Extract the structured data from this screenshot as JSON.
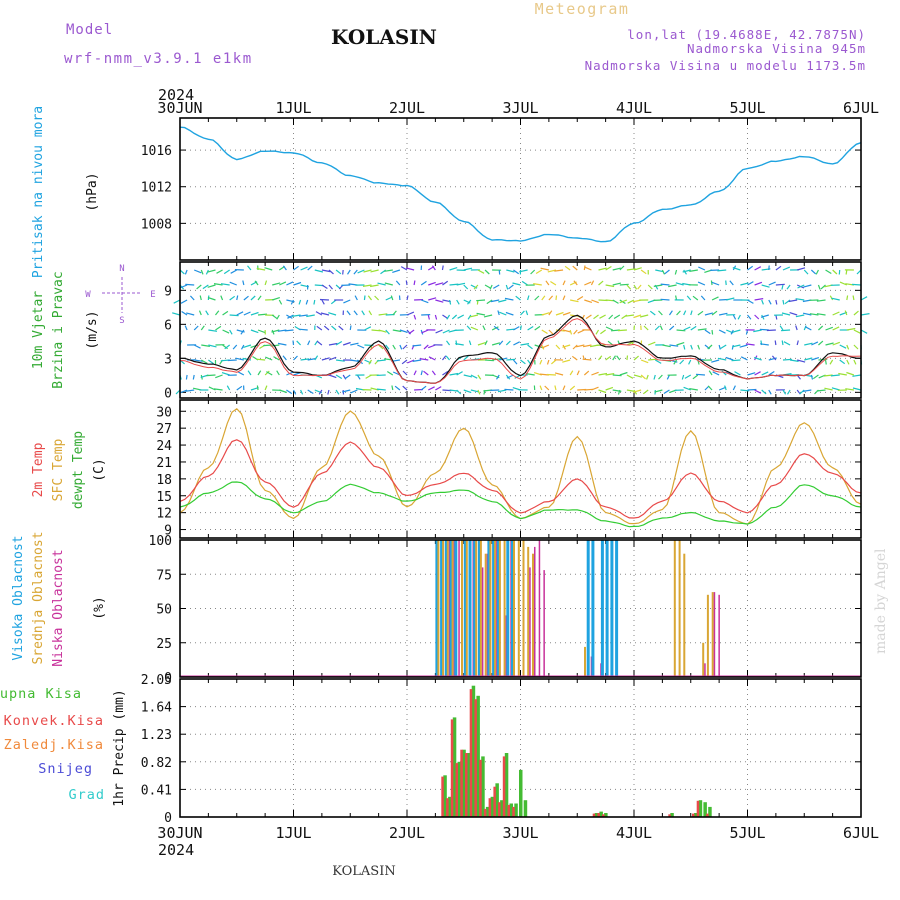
{
  "header": {
    "model_label": "Model",
    "model_name": "wrf-nmm_v3.9.1 e1km",
    "station": "KOLASIN",
    "meteogram": "Meteogram",
    "lonlat": "lon,lat (19.4688E, 42.7875N)",
    "altitude": "Nadmorska Visina 945m",
    "model_altitude": "Nadmorska Visina u modelu 1173.5m",
    "year": "2024",
    "footer_station": "KOLASIN",
    "credit": "made by Angel"
  },
  "colors": {
    "pressure": "#1fa3e0",
    "temp2m": "#e84a4a",
    "sfc_temp": "#d9a634",
    "dewpt": "#33cc33",
    "high_cloud": "#1fa3e0",
    "mid_cloud": "#d9a634",
    "low_cloud": "#c8329b",
    "total_precip": "#44bb33",
    "convective": "#e84a4a",
    "frozen": "#f08a3c",
    "snow": "#4c4cd6",
    "hail": "#33cccc"
  },
  "chart_data": [
    {
      "type": "line",
      "panel": "pressure",
      "ylabel": [
        "Pritisak na nivou mora",
        "(hPa)"
      ],
      "x_ticks": [
        "30JUN",
        "1JUL",
        "2JUL",
        "3JUL",
        "4JUL",
        "5JUL",
        "6JUL"
      ],
      "yticks": [
        1008,
        1012,
        1016
      ],
      "ylim": [
        1004,
        1019.5
      ],
      "x_hours": [
        0,
        6,
        12,
        18,
        24,
        30,
        36,
        42,
        48,
        54,
        60,
        66,
        72,
        78,
        84,
        90,
        96,
        102,
        108,
        114,
        120,
        126,
        132,
        138,
        144
      ],
      "series": [
        {
          "values": [
            1018.5,
            1017.2,
            1015.0,
            1015.9,
            1015.7,
            1014.6,
            1013.2,
            1012.4,
            1012.1,
            1010.3,
            1008.2,
            1006.2,
            1006.1,
            1006.8,
            1006.4,
            1006.0,
            1008.0,
            1009.5,
            1010.0,
            1011.5,
            1014.0,
            1014.8,
            1015.3,
            1014.5,
            1016.8
          ]
        }
      ]
    },
    {
      "type": "line",
      "panel": "wind",
      "ylabel": [
        "10m Vjetar",
        "Brzina i Pravac",
        "(m/s)"
      ],
      "compass": {
        "north": "N",
        "south": "S",
        "west": "W",
        "east": "E"
      },
      "yticks": [
        0,
        3,
        6,
        9
      ],
      "ylim": [
        -0.5,
        11.5
      ],
      "x_hours": [
        0,
        6,
        12,
        18,
        24,
        30,
        36,
        42,
        48,
        54,
        60,
        66,
        72,
        78,
        84,
        90,
        96,
        102,
        108,
        114,
        120,
        126,
        132,
        138,
        144
      ],
      "series": [
        {
          "values": [
            3.0,
            2.5,
            2.0,
            4.8,
            1.8,
            1.5,
            2.2,
            4.5,
            1.0,
            0.8,
            3.2,
            3.5,
            1.5,
            5.0,
            6.8,
            4.0,
            4.5,
            3.0,
            3.2,
            2.0,
            1.2,
            1.5,
            1.5,
            3.5,
            3.0
          ]
        },
        {
          "values": [
            2.8,
            2.2,
            1.8,
            4.5,
            1.5,
            1.5,
            2.0,
            4.2,
            1.0,
            0.8,
            2.8,
            3.0,
            1.2,
            4.8,
            6.5,
            4.2,
            4.2,
            2.8,
            3.0,
            1.8,
            1.2,
            1.5,
            1.5,
            3.2,
            3.2
          ]
        }
      ]
    },
    {
      "type": "line",
      "panel": "temperature",
      "ylabel": [
        "2m Temp",
        "SFC Temp",
        "dewpt Temp",
        "(C)"
      ],
      "yticks": [
        9,
        12,
        15,
        18,
        21,
        24,
        27,
        30
      ],
      "ylim": [
        7.5,
        32
      ],
      "x_hours": [
        0,
        6,
        12,
        18,
        24,
        30,
        36,
        42,
        48,
        54,
        60,
        66,
        72,
        78,
        84,
        90,
        96,
        102,
        108,
        114,
        120,
        126,
        132,
        138,
        144
      ],
      "series": [
        {
          "name": "2m Temp",
          "values": [
            14.0,
            18.5,
            25.0,
            17.5,
            13.0,
            19.0,
            24.5,
            20.0,
            15.0,
            17.0,
            19.0,
            16.0,
            12.0,
            14.0,
            18.0,
            13.0,
            11.0,
            14.0,
            19.0,
            14.0,
            12.0,
            17.0,
            22.5,
            19.0,
            15.5
          ]
        },
        {
          "name": "SFC Temp",
          "values": [
            12.0,
            20.0,
            30.5,
            16.0,
            11.0,
            20.0,
            30.0,
            22.0,
            13.0,
            19.0,
            27.0,
            17.0,
            11.0,
            13.0,
            25.5,
            12.0,
            10.0,
            12.5,
            26.5,
            12.0,
            10.0,
            20.0,
            28.0,
            20.0,
            13.5
          ]
        },
        {
          "name": "dewpt Temp",
          "values": [
            13.0,
            15.5,
            17.5,
            14.5,
            12.0,
            14.0,
            17.0,
            15.5,
            14.0,
            15.5,
            16.0,
            14.0,
            11.0,
            12.5,
            12.5,
            10.5,
            9.5,
            11.0,
            12.0,
            10.5,
            10.0,
            13.0,
            17.0,
            15.0,
            13.0
          ]
        }
      ]
    },
    {
      "type": "bar",
      "panel": "clouds",
      "ylabel": [
        "Visoka Oblacnost",
        "Srednja Oblacnost",
        "Niska Oblacnost",
        "(%)"
      ],
      "yticks": [
        0,
        25,
        50,
        75,
        100
      ],
      "ylim": [
        0,
        100
      ],
      "x_hours": [
        54,
        55,
        56,
        57,
        58,
        59,
        60,
        61,
        62,
        63,
        64,
        65,
        66,
        67,
        68,
        69,
        70,
        71,
        72,
        73,
        74,
        75,
        76,
        85,
        86,
        87,
        88,
        89,
        90,
        91,
        92,
        104,
        105,
        106,
        110,
        111,
        112,
        113
      ],
      "series": [
        {
          "name": "Visoka Oblacnost",
          "values": [
            100,
            100,
            100,
            100,
            100,
            0,
            100,
            100,
            100,
            100,
            0,
            100,
            100,
            100,
            0,
            100,
            100,
            0,
            0,
            0,
            0,
            0,
            0,
            0,
            100,
            100,
            0,
            100,
            100,
            100,
            100,
            0,
            0,
            0,
            0,
            0,
            0,
            0
          ]
        },
        {
          "name": "Srednja Oblacnost",
          "values": [
            100,
            100,
            100,
            100,
            0,
            100,
            100,
            0,
            100,
            100,
            90,
            100,
            100,
            100,
            100,
            0,
            100,
            100,
            100,
            95,
            90,
            0,
            0,
            22,
            0,
            0,
            0,
            0,
            0,
            0,
            0,
            100,
            100,
            90,
            25,
            60,
            62,
            0
          ]
        },
        {
          "name": "Niska Oblacnost",
          "values": [
            0,
            0,
            100,
            100,
            100,
            0,
            0,
            100,
            0,
            80,
            90,
            0,
            100,
            0,
            45,
            100,
            0,
            0,
            0,
            80,
            95,
            100,
            78,
            0,
            15,
            0,
            10,
            0,
            0,
            0,
            0,
            0,
            0,
            0,
            10,
            0,
            62,
            60
          ]
        }
      ]
    },
    {
      "type": "bar",
      "panel": "precipitation",
      "ylabel": [
        "1hr Precip (mm)"
      ],
      "legend": [
        "Ukupna Kisa",
        "Konvek.Kisa",
        "Zaledj.Kisa",
        "Snijeg",
        "Grad"
      ],
      "yticks": [
        0,
        0.41,
        0.82,
        1.23,
        1.64,
        2.05
      ],
      "ylim": [
        0,
        2.05
      ],
      "x_hours": [
        56,
        57,
        58,
        59,
        60,
        61,
        62,
        63,
        64,
        65,
        66,
        67,
        68,
        69,
        70,
        71,
        72,
        73,
        74,
        88,
        89,
        90,
        104,
        109,
        110,
        111,
        112
      ],
      "series": [
        {
          "name": "Ukupna Kisa",
          "values": [
            0.62,
            0.3,
            1.48,
            0.82,
            1.0,
            0.95,
            1.95,
            1.8,
            0.9,
            0.15,
            0.3,
            0.5,
            0.25,
            0.95,
            0.2,
            0.2,
            0.7,
            0.25,
            0.0,
            0.06,
            0.08,
            0.06,
            0.06,
            0.06,
            0.25,
            0.22,
            0.15
          ]
        },
        {
          "name": "Konvek.Kisa",
          "values": [
            0.6,
            0.28,
            1.45,
            0.8,
            1.0,
            0.95,
            1.9,
            1.75,
            0.85,
            0.12,
            0.28,
            0.45,
            0.22,
            0.9,
            0.18,
            0.15,
            0.0,
            0.0,
            0.0,
            0.05,
            0.06,
            0.04,
            0.04,
            0.05,
            0.24,
            0.0,
            0.05
          ]
        }
      ]
    }
  ]
}
